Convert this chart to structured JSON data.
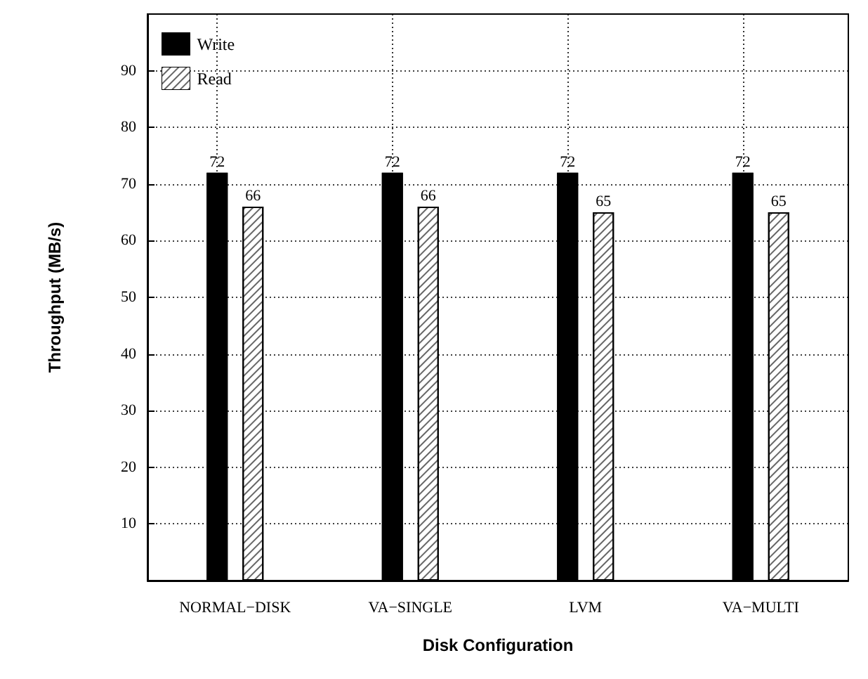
{
  "chart_data": {
    "type": "bar",
    "xlabel": "Disk Configuration",
    "ylabel": "Throughput (MB/s)",
    "categories": [
      "NORMAL−DISK",
      "VA−SINGLE",
      "LVM",
      "VA−MULTI"
    ],
    "series": [
      {
        "name": "Write",
        "color": "#000000",
        "values": [
          72,
          72,
          72,
          72
        ]
      },
      {
        "name": "Read",
        "color": "#ffffff",
        "values": [
          66,
          66,
          65,
          65
        ]
      }
    ],
    "ylim": [
      0,
      100
    ],
    "yticks": [
      10,
      20,
      30,
      40,
      50,
      60,
      70,
      80,
      90
    ],
    "grid": true,
    "legend": "top left",
    "data_labels": true
  }
}
